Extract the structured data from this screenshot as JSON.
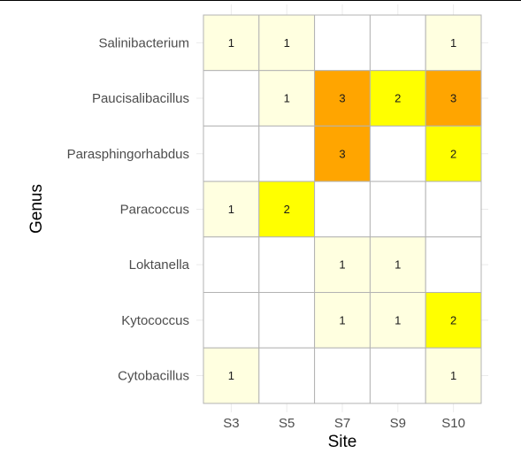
{
  "chart_data": {
    "type": "heatmap",
    "xlabel": "Site",
    "ylabel": "Genus",
    "x_categories": [
      "S3",
      "S5",
      "S7",
      "S9",
      "S10"
    ],
    "y_categories": [
      "Salinibacterium",
      "Paucisalibacillus",
      "Parasphingorhabdus",
      "Paracoccus",
      "Loktanella",
      "Kytococcus",
      "Cytobacillus"
    ],
    "values": [
      [
        1,
        1,
        0,
        0,
        1
      ],
      [
        0,
        1,
        3,
        2,
        3
      ],
      [
        0,
        0,
        3,
        0,
        2
      ],
      [
        1,
        2,
        0,
        0,
        0
      ],
      [
        0,
        0,
        1,
        1,
        0
      ],
      [
        0,
        0,
        1,
        1,
        2
      ],
      [
        1,
        0,
        0,
        0,
        1
      ]
    ],
    "color_scale": {
      "0": "#ffffff",
      "1": "#ffffe0",
      "2": "#ffff00",
      "3": "#ffa500"
    },
    "grid": true,
    "legend": "none"
  }
}
